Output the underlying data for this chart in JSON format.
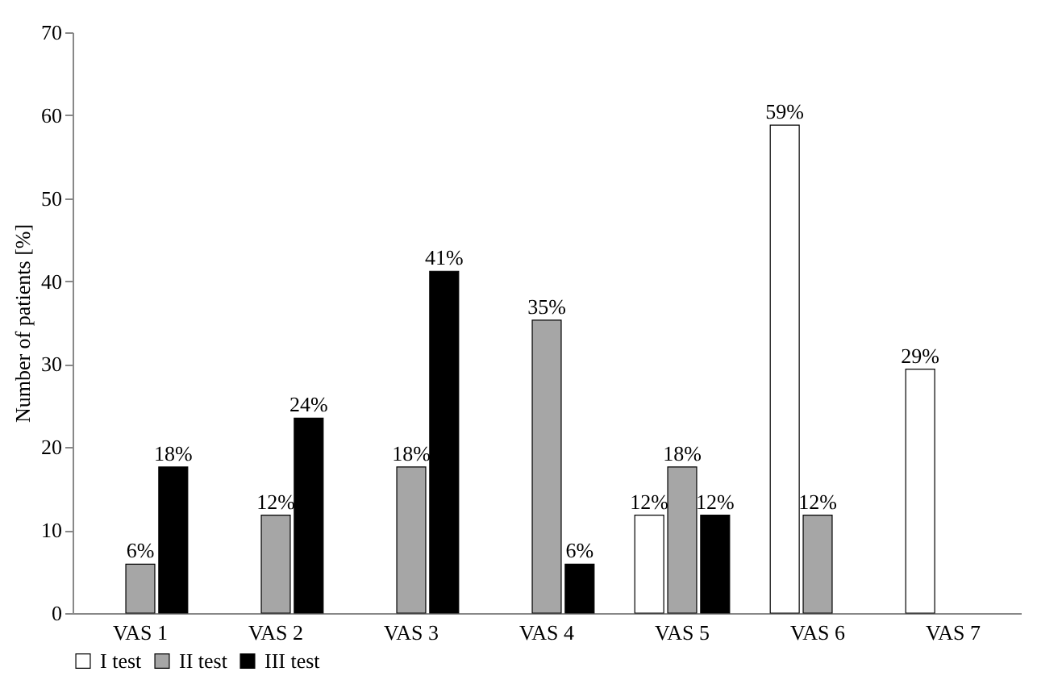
{
  "chart_data": {
    "type": "bar",
    "ylabel": "Number of patients [%]",
    "categories": [
      "VAS 1",
      "VAS 2",
      "VAS 3",
      "VAS 4",
      "VAS 5",
      "VAS 6",
      "VAS 7"
    ],
    "series": [
      {
        "name": "I test",
        "color": "#ffffff",
        "values": [
          null,
          null,
          null,
          null,
          11.8,
          58.8,
          29.4
        ],
        "value_labels": [
          null,
          null,
          null,
          null,
          "12%",
          "59%",
          "29%"
        ]
      },
      {
        "name": "II test",
        "color": "#a6a6a6",
        "values": [
          5.9,
          11.8,
          17.6,
          35.3,
          17.6,
          11.8,
          null
        ],
        "value_labels": [
          "6%",
          "12%",
          "18%",
          "35%",
          "18%",
          "12%",
          null
        ]
      },
      {
        "name": "III test",
        "color": "#000000",
        "values": [
          17.6,
          23.5,
          41.2,
          5.9,
          11.8,
          null,
          null
        ],
        "value_labels": [
          "18%",
          "24%",
          "41%",
          "6%",
          "12%",
          null,
          null
        ]
      }
    ],
    "ylim": [
      0,
      70
    ],
    "yticks": [
      0,
      10,
      20,
      30,
      40,
      50,
      60,
      70
    ],
    "grid": false,
    "legend": "bottom"
  }
}
